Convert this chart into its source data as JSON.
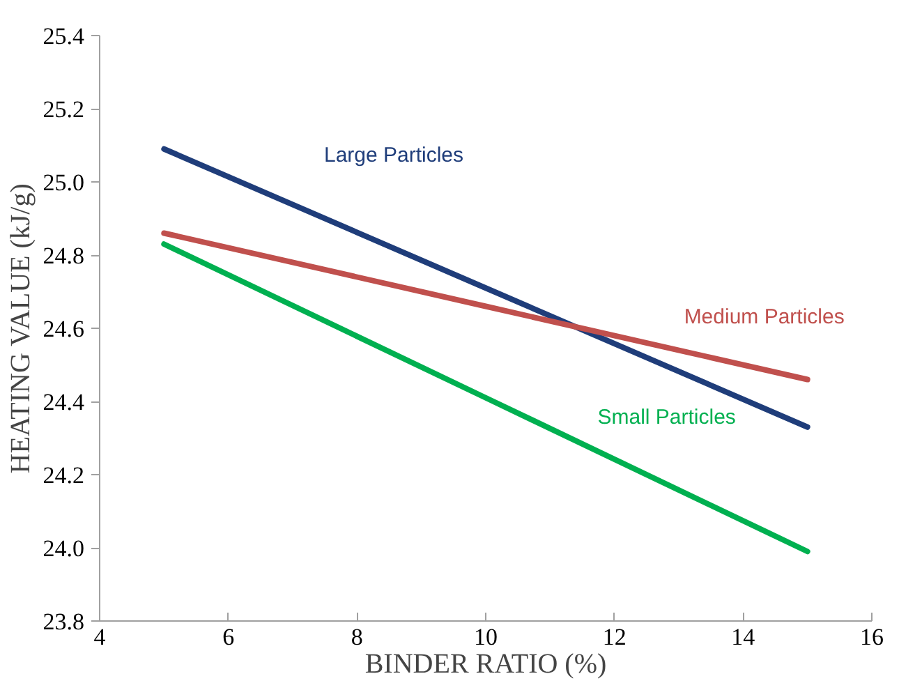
{
  "chart_data": {
    "type": "line",
    "xlabel": "BINDER RATIO (%)",
    "ylabel": "HEATING VALUE (kJ/g)",
    "x": [
      5,
      10,
      15
    ],
    "series": [
      {
        "name": "Large Particles",
        "color": "#1f3d7a",
        "values": [
          25.09,
          24.71,
          24.33
        ]
      },
      {
        "name": "Medium Particles",
        "color": "#c0504d",
        "values": [
          24.86,
          24.66,
          24.46
        ]
      },
      {
        "name": "Small Particles",
        "color": "#00b050",
        "values": [
          24.83,
          24.41,
          23.99
        ]
      }
    ],
    "xlim": [
      4,
      16
    ],
    "xticks": [
      4,
      6,
      8,
      10,
      12,
      14,
      16
    ],
    "ylim": [
      23.8,
      25.4
    ],
    "yticks": [
      {
        "value": 23.8,
        "label": "23.8"
      },
      {
        "value": 24.0,
        "label": "24.0"
      },
      {
        "value": 24.2,
        "label": "24.2"
      },
      {
        "value": 24.4,
        "label": "24.4"
      },
      {
        "value": 24.6,
        "label": "24.6"
      },
      {
        "value": 24.8,
        "label": "24.8"
      },
      {
        "value": 25.0,
        "label": "25.0"
      },
      {
        "value": 25.2,
        "label": "25.2"
      },
      {
        "value": 25.4,
        "label": "25.4"
      }
    ],
    "grid": false,
    "marker": "none",
    "line_style": "solid"
  }
}
